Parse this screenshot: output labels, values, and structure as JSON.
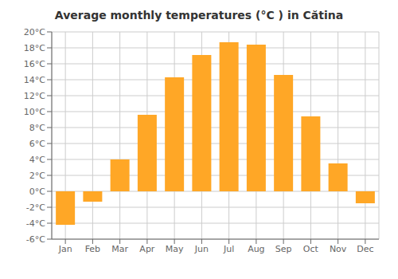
{
  "chart_data": {
    "type": "bar",
    "title": "Average monthly temperatures (°C ) in Cătina",
    "categories": [
      "Jan",
      "Feb",
      "Mar",
      "Apr",
      "May",
      "Jun",
      "Jul",
      "Aug",
      "Sep",
      "Oct",
      "Nov",
      "Dec"
    ],
    "values": [
      -4.2,
      -1.3,
      4.0,
      9.6,
      14.3,
      17.1,
      18.7,
      18.4,
      14.6,
      9.4,
      3.5,
      -1.5
    ],
    "color": "#FFA726",
    "ylim": [
      -6,
      20
    ],
    "yticks": [
      {
        "value": -6,
        "label": "-6°C"
      },
      {
        "value": -4,
        "label": "-4°C"
      },
      {
        "value": -2,
        "label": "-2°C"
      },
      {
        "value": 0,
        "label": "0°C"
      },
      {
        "value": 2,
        "label": "2°C"
      },
      {
        "value": 4,
        "label": "4°C"
      },
      {
        "value": 6,
        "label": "6°C"
      },
      {
        "value": 8,
        "label": "8°C"
      },
      {
        "value": 10,
        "label": "10°C"
      },
      {
        "value": 12,
        "label": "12°C"
      },
      {
        "value": 14,
        "label": "14°C"
      },
      {
        "value": 16,
        "label": "16°C"
      },
      {
        "value": 18,
        "label": "18°C"
      },
      {
        "value": 20,
        "label": "20°C"
      }
    ],
    "grid": true
  }
}
